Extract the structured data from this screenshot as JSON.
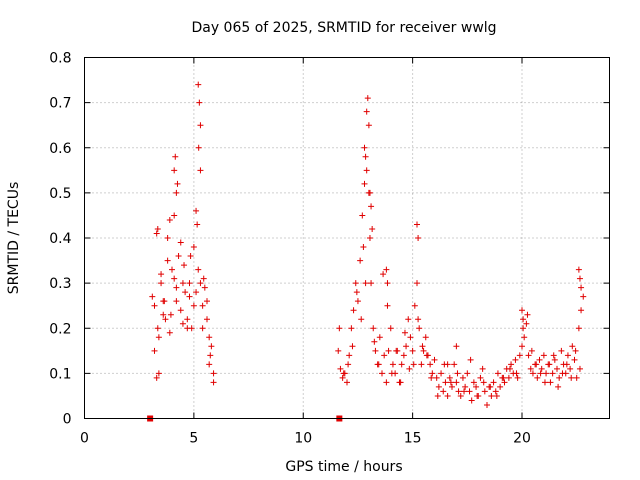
{
  "chart_data": {
    "type": "scatter",
    "title": "Day 065 of 2025, SRMTID for receiver wwlg",
    "xlabel": "GPS time / hours",
    "ylabel": "SRMTID / TECUs",
    "xlim": [
      0,
      24
    ],
    "ylim": [
      0,
      0.8
    ],
    "xticks": [
      "0",
      "5",
      "10",
      "15",
      "20"
    ],
    "yticks": [
      "0",
      "0.1",
      "0.2",
      "0.3",
      "0.4",
      "0.5",
      "0.6",
      "0.7",
      "0.8"
    ],
    "grid": true,
    "color": "#e00000",
    "marker": "plus",
    "series": [
      {
        "name": "SRMTID",
        "x": [
          3.1,
          3.2,
          3.3,
          3.4,
          3.5,
          3.6,
          3.7,
          3.8,
          3.9,
          4.0,
          4.1,
          4.2,
          4.3,
          4.4,
          4.5,
          4.6,
          4.7,
          4.8,
          4.9,
          5.0,
          5.1,
          5.2,
          5.3,
          5.4,
          5.5,
          5.6,
          5.7,
          5.8,
          5.9,
          3.2,
          3.35,
          3.5,
          3.65,
          3.8,
          3.95,
          4.1,
          4.25,
          4.4,
          4.55,
          4.7,
          4.85,
          5.0,
          5.15,
          5.3,
          5.45,
          5.6,
          5.75,
          5.9,
          3.3,
          3.6,
          3.9,
          4.2,
          4.5,
          4.8,
          5.1,
          5.4,
          5.7,
          3.4,
          4.1,
          4.15,
          4.2,
          5.2,
          5.25,
          5.3,
          5.22,
          3.35,
          11.6,
          11.7,
          11.8,
          11.9,
          12.0,
          12.1,
          12.2,
          12.3,
          12.4,
          12.5,
          12.6,
          12.7,
          12.8,
          12.9,
          13.0,
          13.1,
          13.2,
          13.3,
          13.4,
          13.5,
          13.6,
          13.7,
          13.8,
          13.9,
          14.0,
          14.1,
          14.2,
          14.3,
          14.4,
          14.5,
          14.6,
          14.7,
          14.8,
          14.9,
          15.0,
          15.1,
          15.2,
          15.3,
          15.4,
          15.5,
          15.6,
          15.7,
          15.8,
          15.9,
          16.0,
          11.65,
          11.85,
          12.05,
          12.25,
          12.45,
          12.65,
          12.85,
          13.05,
          13.25,
          13.45,
          13.65,
          13.85,
          14.05,
          14.25,
          14.45,
          14.65,
          14.85,
          15.05,
          15.25,
          15.45,
          15.65,
          15.85,
          12.8,
          12.85,
          12.9,
          12.95,
          13.0,
          13.05,
          13.1,
          12.75,
          13.15,
          15.2,
          15.25,
          13.8,
          13.85,
          16.1,
          16.2,
          16.3,
          16.4,
          16.5,
          16.6,
          16.7,
          16.8,
          16.9,
          17.0,
          17.1,
          17.2,
          17.3,
          17.4,
          17.5,
          17.6,
          17.7,
          17.8,
          17.9,
          18.0,
          18.1,
          18.2,
          18.3,
          18.4,
          18.5,
          18.6,
          18.7,
          18.8,
          18.9,
          19.0,
          19.1,
          19.2,
          19.3,
          19.4,
          19.5,
          19.6,
          19.7,
          19.8,
          19.9,
          16.15,
          16.45,
          16.75,
          17.05,
          17.35,
          17.65,
          17.95,
          18.25,
          18.55,
          18.85,
          19.15,
          19.45,
          19.75,
          20.0,
          20.1,
          20.2,
          20.3,
          20.4,
          20.5,
          20.6,
          20.7,
          20.8,
          20.9,
          21.0,
          21.1,
          21.2,
          21.3,
          21.4,
          21.5,
          21.6,
          21.7,
          21.8,
          21.9,
          22.0,
          22.1,
          22.2,
          22.3,
          22.4,
          22.5,
          22.6,
          22.7,
          22.8,
          20.05,
          20.25,
          20.45,
          20.65,
          20.85,
          21.05,
          21.25,
          21.45,
          21.65,
          21.85,
          22.05,
          22.25,
          22.45,
          22.65,
          20.0,
          20.05,
          22.6,
          22.65,
          22.7,
          17.0,
          16.6
        ],
        "y": [
          0.27,
          0.25,
          0.41,
          0.18,
          0.3,
          0.26,
          0.22,
          0.35,
          0.44,
          0.33,
          0.31,
          0.29,
          0.36,
          0.24,
          0.3,
          0.28,
          0.22,
          0.27,
          0.2,
          0.38,
          0.46,
          0.33,
          0.3,
          0.25,
          0.29,
          0.22,
          0.18,
          0.16,
          0.1,
          0.15,
          0.2,
          0.32,
          0.26,
          0.4,
          0.23,
          0.45,
          0.52,
          0.39,
          0.34,
          0.2,
          0.36,
          0.25,
          0.43,
          0.55,
          0.31,
          0.26,
          0.14,
          0.08,
          0.09,
          0.23,
          0.19,
          0.26,
          0.21,
          0.3,
          0.28,
          0.2,
          0.12,
          0.1,
          0.55,
          0.58,
          0.5,
          0.74,
          0.7,
          0.65,
          0.6,
          0.42,
          0.15,
          0.11,
          0.09,
          0.1,
          0.08,
          0.14,
          0.2,
          0.24,
          0.3,
          0.26,
          0.35,
          0.45,
          0.52,
          0.68,
          0.5,
          0.3,
          0.2,
          0.15,
          0.12,
          0.18,
          0.1,
          0.14,
          0.08,
          0.15,
          0.2,
          0.12,
          0.1,
          0.15,
          0.08,
          0.12,
          0.14,
          0.16,
          0.22,
          0.18,
          0.15,
          0.25,
          0.3,
          0.2,
          0.12,
          0.15,
          0.18,
          0.14,
          0.12,
          0.1,
          0.13,
          0.2,
          0.1,
          0.12,
          0.16,
          0.28,
          0.22,
          0.3,
          0.4,
          0.17,
          0.12,
          0.32,
          0.25,
          0.1,
          0.15,
          0.08,
          0.19,
          0.11,
          0.12,
          0.22,
          0.16,
          0.14,
          0.09,
          0.6,
          0.58,
          0.55,
          0.71,
          0.65,
          0.5,
          0.47,
          0.38,
          0.42,
          0.43,
          0.4,
          0.33,
          0.3,
          0.09,
          0.07,
          0.1,
          0.06,
          0.08,
          0.05,
          0.09,
          0.07,
          0.12,
          0.08,
          0.06,
          0.05,
          0.09,
          0.07,
          0.1,
          0.06,
          0.04,
          0.08,
          0.07,
          0.05,
          0.09,
          0.11,
          0.06,
          0.03,
          0.07,
          0.05,
          0.08,
          0.06,
          0.1,
          0.07,
          0.09,
          0.08,
          0.11,
          0.09,
          0.12,
          0.1,
          0.13,
          0.09,
          0.14,
          0.05,
          0.12,
          0.08,
          0.1,
          0.06,
          0.13,
          0.05,
          0.08,
          0.07,
          0.05,
          0.09,
          0.11,
          0.1,
          0.16,
          0.18,
          0.21,
          0.14,
          0.11,
          0.1,
          0.12,
          0.09,
          0.13,
          0.11,
          0.14,
          0.1,
          0.12,
          0.08,
          0.1,
          0.13,
          0.11,
          0.09,
          0.15,
          0.12,
          0.1,
          0.14,
          0.11,
          0.16,
          0.13,
          0.09,
          0.2,
          0.24,
          0.27,
          0.2,
          0.23,
          0.15,
          0.12,
          0.1,
          0.08,
          0.12,
          0.14,
          0.07,
          0.1,
          0.12,
          0.09,
          0.15,
          0.11,
          0.24,
          0.22,
          0.33,
          0.31,
          0.29,
          0.16,
          0.12
        ]
      }
    ],
    "missing_markers": {
      "name": "gap-flag",
      "x": [
        3.0,
        11.65
      ],
      "y": [
        0.0,
        0.0
      ]
    }
  }
}
